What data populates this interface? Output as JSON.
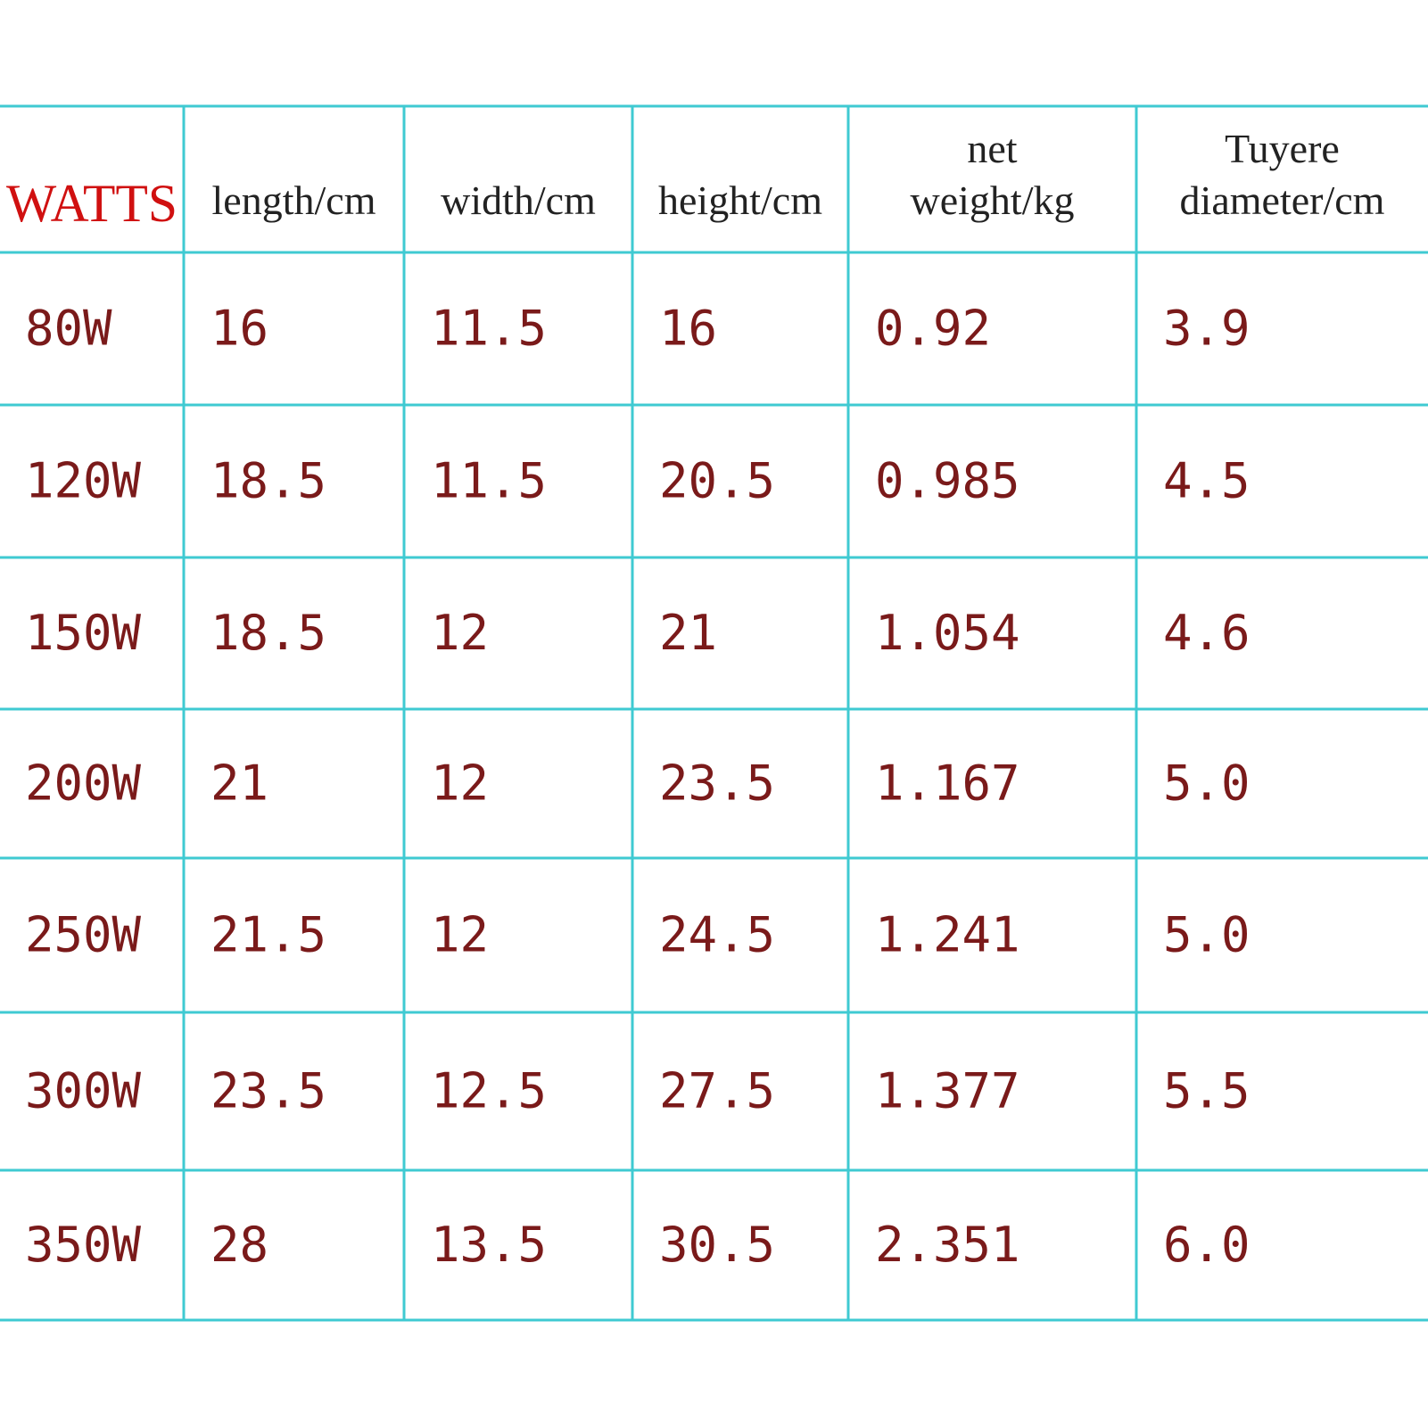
{
  "table": {
    "header": [
      "WATTS",
      [
        "length/cm"
      ],
      [
        "width/cm"
      ],
      [
        "height/cm"
      ],
      [
        "net",
        "weight/kg"
      ],
      [
        "Tuyere",
        "diameter/cm"
      ]
    ],
    "rows": [
      [
        "80W",
        "16",
        "11.5",
        "16",
        "0.92",
        "3.9"
      ],
      [
        "120W",
        "18.5",
        "11.5",
        "20.5",
        "0.985",
        "4.5"
      ],
      [
        "150W",
        "18.5",
        "12",
        "21",
        "1.054",
        "4.6"
      ],
      [
        "200W",
        "21",
        "12",
        "23.5",
        "1.167",
        "5.0"
      ],
      [
        "250W",
        "21.5",
        "12",
        "24.5",
        "1.241",
        "5.0"
      ],
      [
        "300W",
        "23.5",
        "12.5",
        "27.5",
        "1.377",
        "5.5"
      ],
      [
        "350W",
        "28",
        "13.5",
        "30.5",
        "2.351",
        "6.0"
      ]
    ]
  }
}
